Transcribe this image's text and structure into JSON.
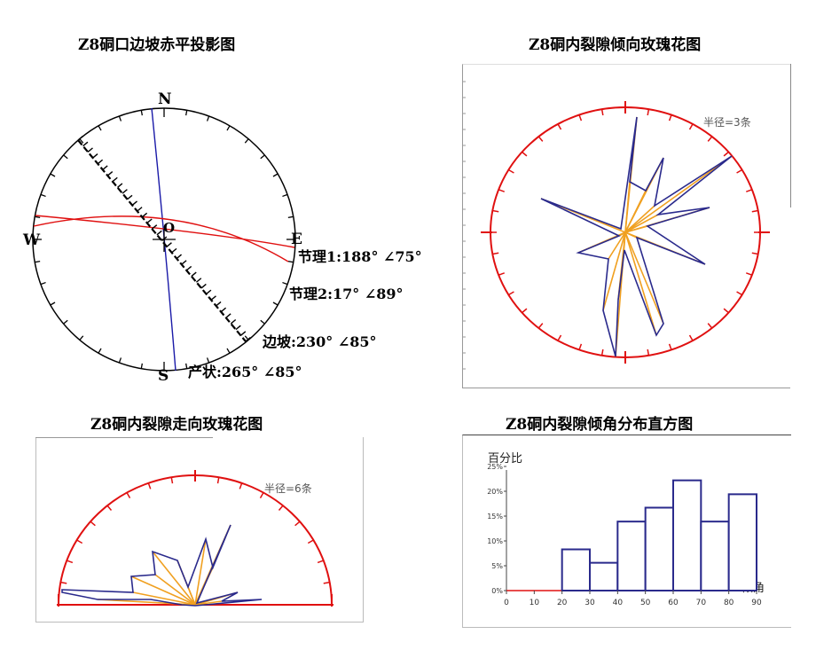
{
  "panels": {
    "stereonet": {
      "title": "Z8硐口边坡赤平投影图",
      "north": "N",
      "south": "S",
      "west": "W",
      "east": "E",
      "center": "O",
      "joint1": "节理1:188° ∠75°",
      "joint2": "节理2:17° ∠89°",
      "slope": "边坡:230° ∠85°",
      "attitude": "产状:265° ∠85°"
    },
    "dip_rose": {
      "title": "Z8硐内裂隙倾向玫瑰花图",
      "radius_label": "半径=3条"
    },
    "strike_rose": {
      "title": "Z8硐内裂隙走向玫瑰花图",
      "radius_label": "半径=6条"
    },
    "histogram": {
      "title": "Z8硐内裂隙倾角分布直方图",
      "ylabel": "百分比",
      "xlabel": "倾角"
    }
  },
  "colors": {
    "red": "#e01010",
    "blue": "#1a1aa8",
    "navy": "#2a2a8c",
    "orange": "#f0a020"
  },
  "chart_data": {
    "type": "bar",
    "title": "Z8硐内裂隙倾角分布直方图",
    "xlabel": "倾角",
    "ylabel": "百分比",
    "x_ticks": [
      "0",
      "10",
      "20",
      "30",
      "40",
      "50",
      "60",
      "70",
      "80",
      "90"
    ],
    "y_ticks": [
      "0%",
      "5%",
      "10%",
      "15%",
      "20%",
      "25%"
    ],
    "bins": [
      [
        20,
        30
      ],
      [
        30,
        40
      ],
      [
        40,
        50
      ],
      [
        50,
        60
      ],
      [
        60,
        70
      ],
      [
        70,
        80
      ],
      [
        80,
        90
      ]
    ],
    "values": [
      8.3,
      5.6,
      13.9,
      16.7,
      22.2,
      13.9,
      19.4
    ],
    "xlim": [
      0,
      90
    ],
    "ylim": [
      0,
      25
    ]
  }
}
